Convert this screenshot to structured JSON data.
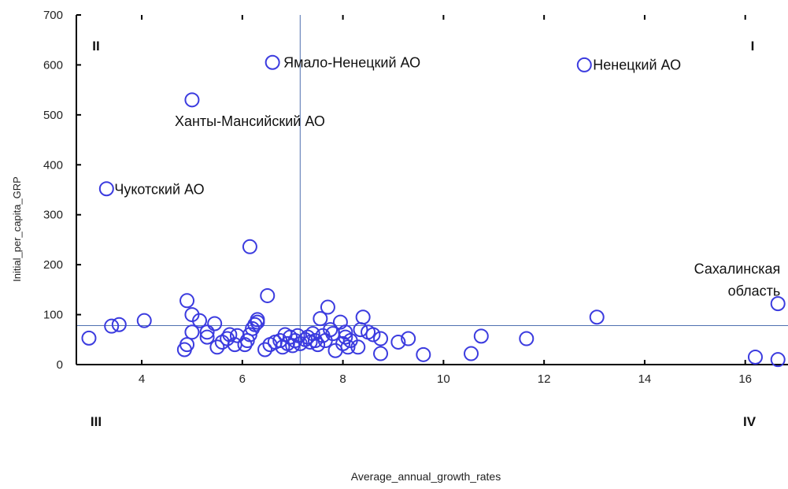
{
  "chart_data": {
    "type": "scatter",
    "xlabel": "Average_annual_growth_rates",
    "ylabel": "Initial_per_capita_GRP",
    "xlim": [
      2.7,
      16.85
    ],
    "ylim": [
      0,
      700
    ],
    "xticks": [
      4,
      6,
      8,
      10,
      12,
      14,
      16
    ],
    "yticks": [
      0,
      100,
      200,
      300,
      400,
      500,
      600,
      700
    ],
    "grid": false,
    "reference_lines": {
      "x": 7.15,
      "y": 78
    },
    "quadrant_labels": [
      {
        "text": "I",
        "corner": "top-right"
      },
      {
        "text": "II",
        "corner": "top-left"
      },
      {
        "text": "III",
        "corner": "bottom-left"
      },
      {
        "text": "IV",
        "corner": "bottom-right"
      }
    ],
    "annotations": [
      {
        "text": "Ямало-Ненецкий АО",
        "x": 6.6,
        "y": 605
      },
      {
        "text": "Ненецкий АО",
        "x": 12.8,
        "y": 600
      },
      {
        "text": "Ханты-Мансийский АО",
        "x": 5.0,
        "y": 530
      },
      {
        "text": "Чукотский АО",
        "x": 3.3,
        "y": 352
      },
      {
        "text": "Сахалинская",
        "x": 16.65,
        "y": 122
      },
      {
        "text": "область",
        "x": 16.65,
        "y": 122
      }
    ],
    "colors": {
      "marker": "#3b3bdf",
      "reference_line": "#4d6fb0",
      "axis": "#000000",
      "text": "#222222"
    },
    "points": [
      {
        "x": 2.95,
        "y": 53
      },
      {
        "x": 3.4,
        "y": 77
      },
      {
        "x": 3.55,
        "y": 80
      },
      {
        "x": 4.05,
        "y": 88
      },
      {
        "x": 4.85,
        "y": 30
      },
      {
        "x": 4.9,
        "y": 40
      },
      {
        "x": 4.9,
        "y": 128
      },
      {
        "x": 5.0,
        "y": 65
      },
      {
        "x": 5.0,
        "y": 100
      },
      {
        "x": 5.15,
        "y": 88
      },
      {
        "x": 5.3,
        "y": 65
      },
      {
        "x": 5.3,
        "y": 55
      },
      {
        "x": 5.45,
        "y": 82
      },
      {
        "x": 5.5,
        "y": 35
      },
      {
        "x": 5.6,
        "y": 45
      },
      {
        "x": 5.7,
        "y": 52
      },
      {
        "x": 5.75,
        "y": 60
      },
      {
        "x": 5.85,
        "y": 40
      },
      {
        "x": 5.9,
        "y": 58
      },
      {
        "x": 6.05,
        "y": 40
      },
      {
        "x": 6.1,
        "y": 48
      },
      {
        "x": 6.15,
        "y": 60
      },
      {
        "x": 6.15,
        "y": 236
      },
      {
        "x": 6.2,
        "y": 72
      },
      {
        "x": 6.25,
        "y": 80
      },
      {
        "x": 6.3,
        "y": 85
      },
      {
        "x": 6.3,
        "y": 90
      },
      {
        "x": 6.45,
        "y": 30
      },
      {
        "x": 6.5,
        "y": 138
      },
      {
        "x": 6.55,
        "y": 40
      },
      {
        "x": 6.65,
        "y": 45
      },
      {
        "x": 6.75,
        "y": 48
      },
      {
        "x": 6.8,
        "y": 35
      },
      {
        "x": 6.85,
        "y": 60
      },
      {
        "x": 6.9,
        "y": 42
      },
      {
        "x": 6.95,
        "y": 55
      },
      {
        "x": 7.0,
        "y": 38
      },
      {
        "x": 7.05,
        "y": 48
      },
      {
        "x": 7.1,
        "y": 58
      },
      {
        "x": 7.15,
        "y": 42
      },
      {
        "x": 7.25,
        "y": 50
      },
      {
        "x": 7.3,
        "y": 55
      },
      {
        "x": 7.35,
        "y": 45
      },
      {
        "x": 7.4,
        "y": 62
      },
      {
        "x": 7.45,
        "y": 48
      },
      {
        "x": 7.5,
        "y": 40
      },
      {
        "x": 7.55,
        "y": 92
      },
      {
        "x": 7.6,
        "y": 58
      },
      {
        "x": 7.65,
        "y": 48
      },
      {
        "x": 7.7,
        "y": 115
      },
      {
        "x": 7.75,
        "y": 70
      },
      {
        "x": 7.8,
        "y": 62
      },
      {
        "x": 7.85,
        "y": 28
      },
      {
        "x": 7.95,
        "y": 85
      },
      {
        "x": 8.0,
        "y": 42
      },
      {
        "x": 8.05,
        "y": 55
      },
      {
        "x": 8.05,
        "y": 65
      },
      {
        "x": 8.1,
        "y": 35
      },
      {
        "x": 8.15,
        "y": 48
      },
      {
        "x": 8.3,
        "y": 35
      },
      {
        "x": 8.35,
        "y": 70
      },
      {
        "x": 8.4,
        "y": 95
      },
      {
        "x": 8.5,
        "y": 65
      },
      {
        "x": 8.6,
        "y": 60
      },
      {
        "x": 8.75,
        "y": 22
      },
      {
        "x": 8.75,
        "y": 52
      },
      {
        "x": 9.1,
        "y": 45
      },
      {
        "x": 9.3,
        "y": 52
      },
      {
        "x": 9.6,
        "y": 20
      },
      {
        "x": 10.55,
        "y": 22
      },
      {
        "x": 10.75,
        "y": 57
      },
      {
        "x": 11.65,
        "y": 52
      },
      {
        "x": 13.05,
        "y": 95
      },
      {
        "x": 16.2,
        "y": 15
      },
      {
        "x": 16.65,
        "y": 10
      },
      {
        "x": 6.6,
        "y": 605
      },
      {
        "x": 12.8,
        "y": 600
      },
      {
        "x": 5.0,
        "y": 530
      },
      {
        "x": 3.3,
        "y": 352
      },
      {
        "x": 16.65,
        "y": 122
      }
    ]
  }
}
